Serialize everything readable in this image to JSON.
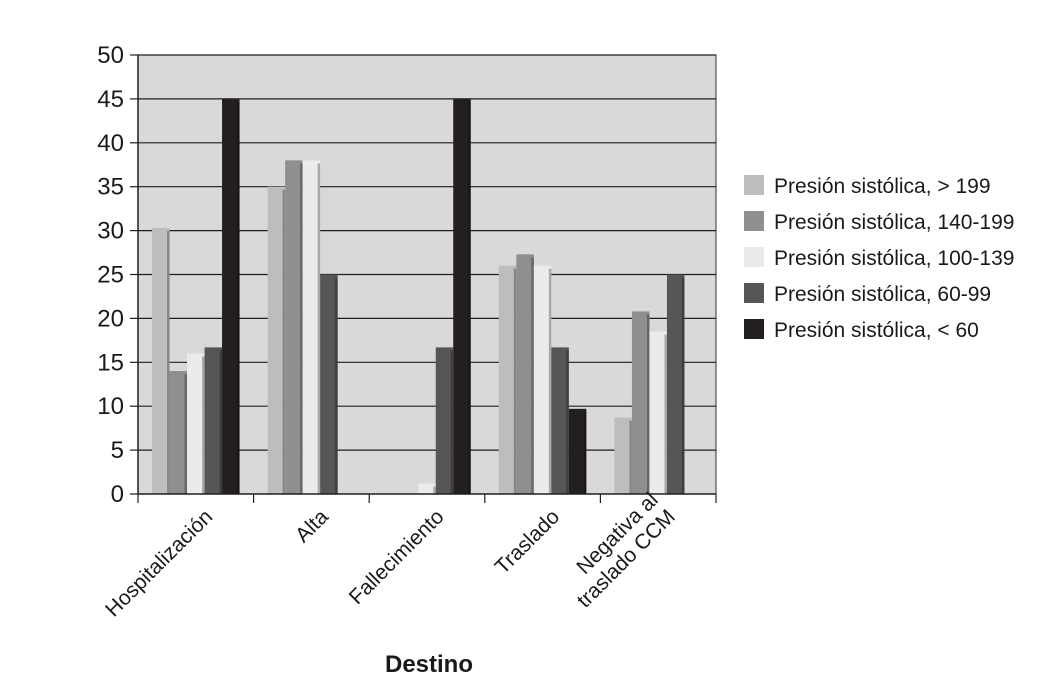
{
  "chart_data": {
    "type": "bar",
    "title": "",
    "xlabel": "Destino",
    "ylabel": "",
    "ylim": [
      0,
      50
    ],
    "yticks": [
      0,
      5,
      10,
      15,
      20,
      25,
      30,
      35,
      40,
      45,
      50
    ],
    "grid": true,
    "legend_position": "right",
    "categories": [
      [
        "Hospitalización"
      ],
      [
        "Alta"
      ],
      [
        "Fallecimiento"
      ],
      [
        "Traslado"
      ],
      [
        "Negativa al",
        "traslado CCM"
      ]
    ],
    "series": [
      {
        "name": "Presión sistólica, > 199",
        "color": "#bdbdbd",
        "values": [
          30.3,
          35.0,
          0,
          26.0,
          8.7
        ]
      },
      {
        "name": "Presión sistólica, 140-199",
        "color": "#8f8f8f",
        "values": [
          14.0,
          38.0,
          0,
          27.3,
          20.8
        ]
      },
      {
        "name": "Presión sistólica, 100-139",
        "color": "#ebebeb",
        "values": [
          16.0,
          38.0,
          1.2,
          26.0,
          18.5
        ]
      },
      {
        "name": "Presión sistólica, 60-99",
        "color": "#565656",
        "values": [
          16.7,
          25.0,
          16.7,
          16.7,
          25.0
        ]
      },
      {
        "name": "Presión sistólica, < 60",
        "color": "#231f20",
        "values": [
          45.0,
          0,
          45.0,
          9.7,
          0
        ]
      }
    ],
    "plot_background": "#d9d9d9"
  }
}
